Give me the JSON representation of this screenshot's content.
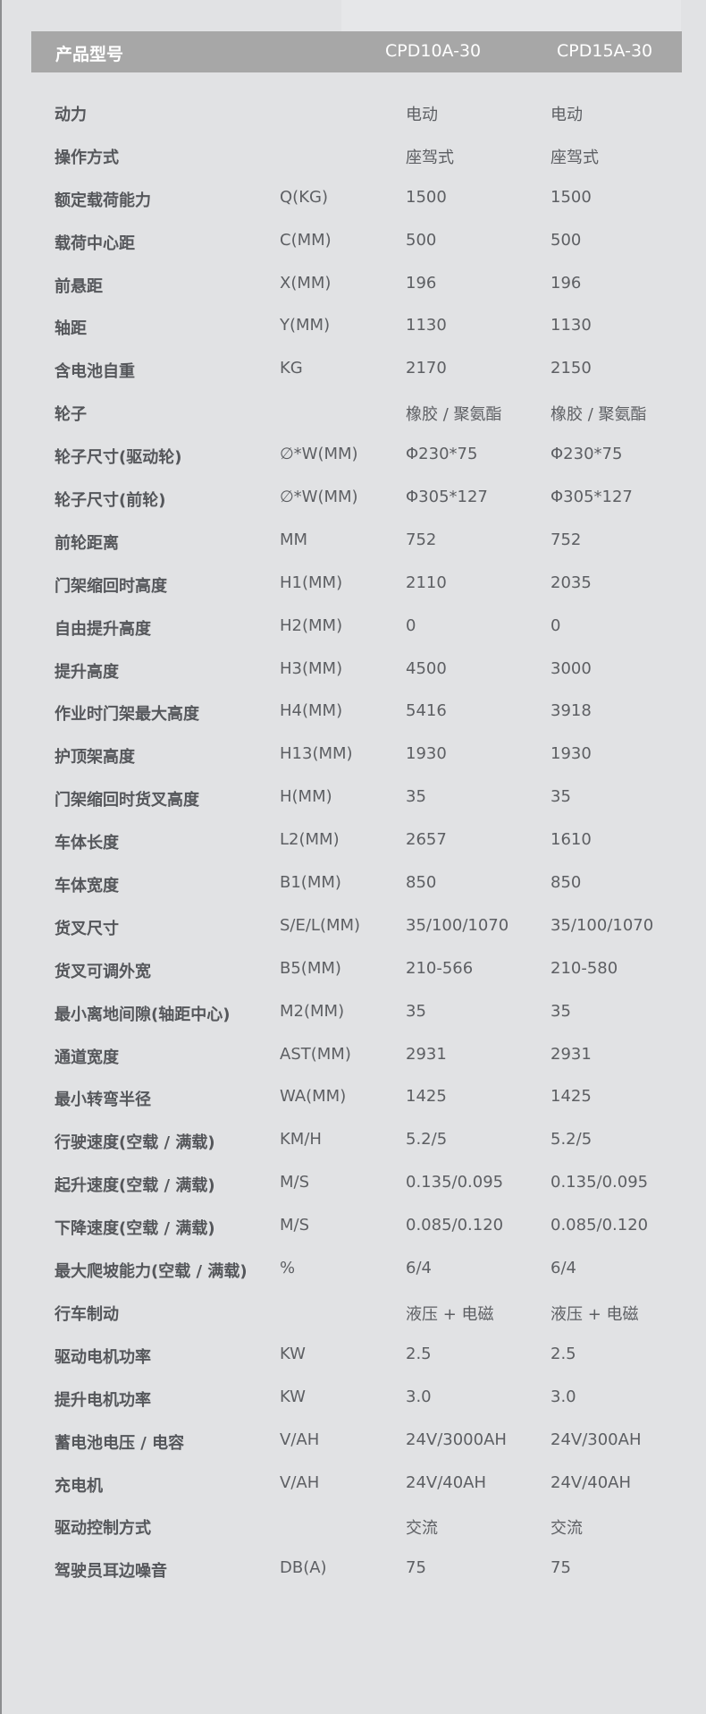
{
  "header": {
    "label": "产品型号",
    "model1": "CPD10A-30",
    "model2": "CPD15A-30"
  },
  "rows": [
    {
      "name": "动力",
      "unit": "",
      "v1": "电动",
      "v2": "电动"
    },
    {
      "name": "操作方式",
      "unit": "",
      "v1": "座驾式",
      "v2": "座驾式"
    },
    {
      "name": "额定载荷能力",
      "unit": "Q(KG)",
      "v1": "1500",
      "v2": "1500"
    },
    {
      "name": "载荷中心距",
      "unit": "C(MM)",
      "v1": "500",
      "v2": "500"
    },
    {
      "name": "前悬距",
      "unit": "X(MM)",
      "v1": "196",
      "v2": "196"
    },
    {
      "name": "轴距",
      "unit": "Y(MM)",
      "v1": "1130",
      "v2": "1130"
    },
    {
      "name": "含电池自重",
      "unit": "KG",
      "v1": "2170",
      "v2": "2150"
    },
    {
      "name": "轮子",
      "unit": "",
      "v1": "橡胶 / 聚氨酯",
      "v2": "橡胶 / 聚氨酯"
    },
    {
      "name": "轮子尺寸(驱动轮)",
      "unit": "∅*W(MM)",
      "v1": "Φ230*75",
      "v2": "Φ230*75"
    },
    {
      "name": "轮子尺寸(前轮)",
      "unit": "∅*W(MM)",
      "v1": "Φ305*127",
      "v2": "Φ305*127"
    },
    {
      "name": "前轮距离",
      "unit": "MM",
      "v1": "752",
      "v2": "752"
    },
    {
      "name": "门架缩回时高度",
      "unit": "H1(MM)",
      "v1": "2110",
      "v2": "2035"
    },
    {
      "name": "自由提升高度",
      "unit": "H2(MM)",
      "v1": "0",
      "v2": "0"
    },
    {
      "name": "提升高度",
      "unit": "H3(MM)",
      "v1": "4500",
      "v2": "3000"
    },
    {
      "name": "作业时门架最大高度",
      "unit": "H4(MM)",
      "v1": "5416",
      "v2": "3918"
    },
    {
      "name": "护顶架高度",
      "unit": "H13(MM)",
      "v1": "1930",
      "v2": "1930"
    },
    {
      "name": "门架缩回时货叉高度",
      "unit": "H(MM)",
      "v1": "35",
      "v2": "35"
    },
    {
      "name": "车体长度",
      "unit": "L2(MM)",
      "v1": "2657",
      "v2": "1610"
    },
    {
      "name": "车体宽度",
      "unit": "B1(MM)",
      "v1": "850",
      "v2": "850"
    },
    {
      "name": "货叉尺寸",
      "unit": "S/E/L(MM)",
      "v1": "35/100/1070",
      "v2": "35/100/1070"
    },
    {
      "name": "货叉可调外宽",
      "unit": "B5(MM)",
      "v1": "210-566",
      "v2": "210-580"
    },
    {
      "name": "最小离地间隙(轴距中心)",
      "unit": "M2(MM)",
      "v1": "35",
      "v2": "35"
    },
    {
      "name": "通道宽度",
      "unit": "AST(MM)",
      "v1": "2931",
      "v2": "2931"
    },
    {
      "name": "最小转弯半径",
      "unit": "WA(MM)",
      "v1": "1425",
      "v2": "1425"
    },
    {
      "name": "行驶速度(空载 / 满载)",
      "unit": "KM/H",
      "v1": "5.2/5",
      "v2": "5.2/5"
    },
    {
      "name": "起升速度(空载 / 满载)",
      "unit": "M/S",
      "v1": "0.135/0.095",
      "v2": "0.135/0.095"
    },
    {
      "name": "下降速度(空载 / 满载)",
      "unit": "M/S",
      "v1": "0.085/0.120",
      "v2": "0.085/0.120"
    },
    {
      "name": "最大爬坡能力(空载 / 满载)",
      "unit": "%",
      "v1": "6/4",
      "v2": "6/4"
    },
    {
      "name": "行车制动",
      "unit": "",
      "v1": "液压 + 电磁",
      "v2": "液压 + 电磁"
    },
    {
      "name": "驱动电机功率",
      "unit": "KW",
      "v1": "2.5",
      "v2": "2.5"
    },
    {
      "name": "提升电机功率",
      "unit": "KW",
      "v1": "3.0",
      "v2": "3.0"
    },
    {
      "name": "蓄电池电压 / 电容",
      "unit": "V/AH",
      "v1": "24V/3000AH",
      "v2": "24V/300AH"
    },
    {
      "name": "充电机",
      "unit": "V/AH",
      "v1": "24V/40AH",
      "v2": "24V/40AH"
    },
    {
      "name": "驱动控制方式",
      "unit": "",
      "v1": "交流",
      "v2": "交流"
    },
    {
      "name": "驾驶员耳边噪音",
      "unit": "DB(A)",
      "v1": "75",
      "v2": "75"
    }
  ]
}
